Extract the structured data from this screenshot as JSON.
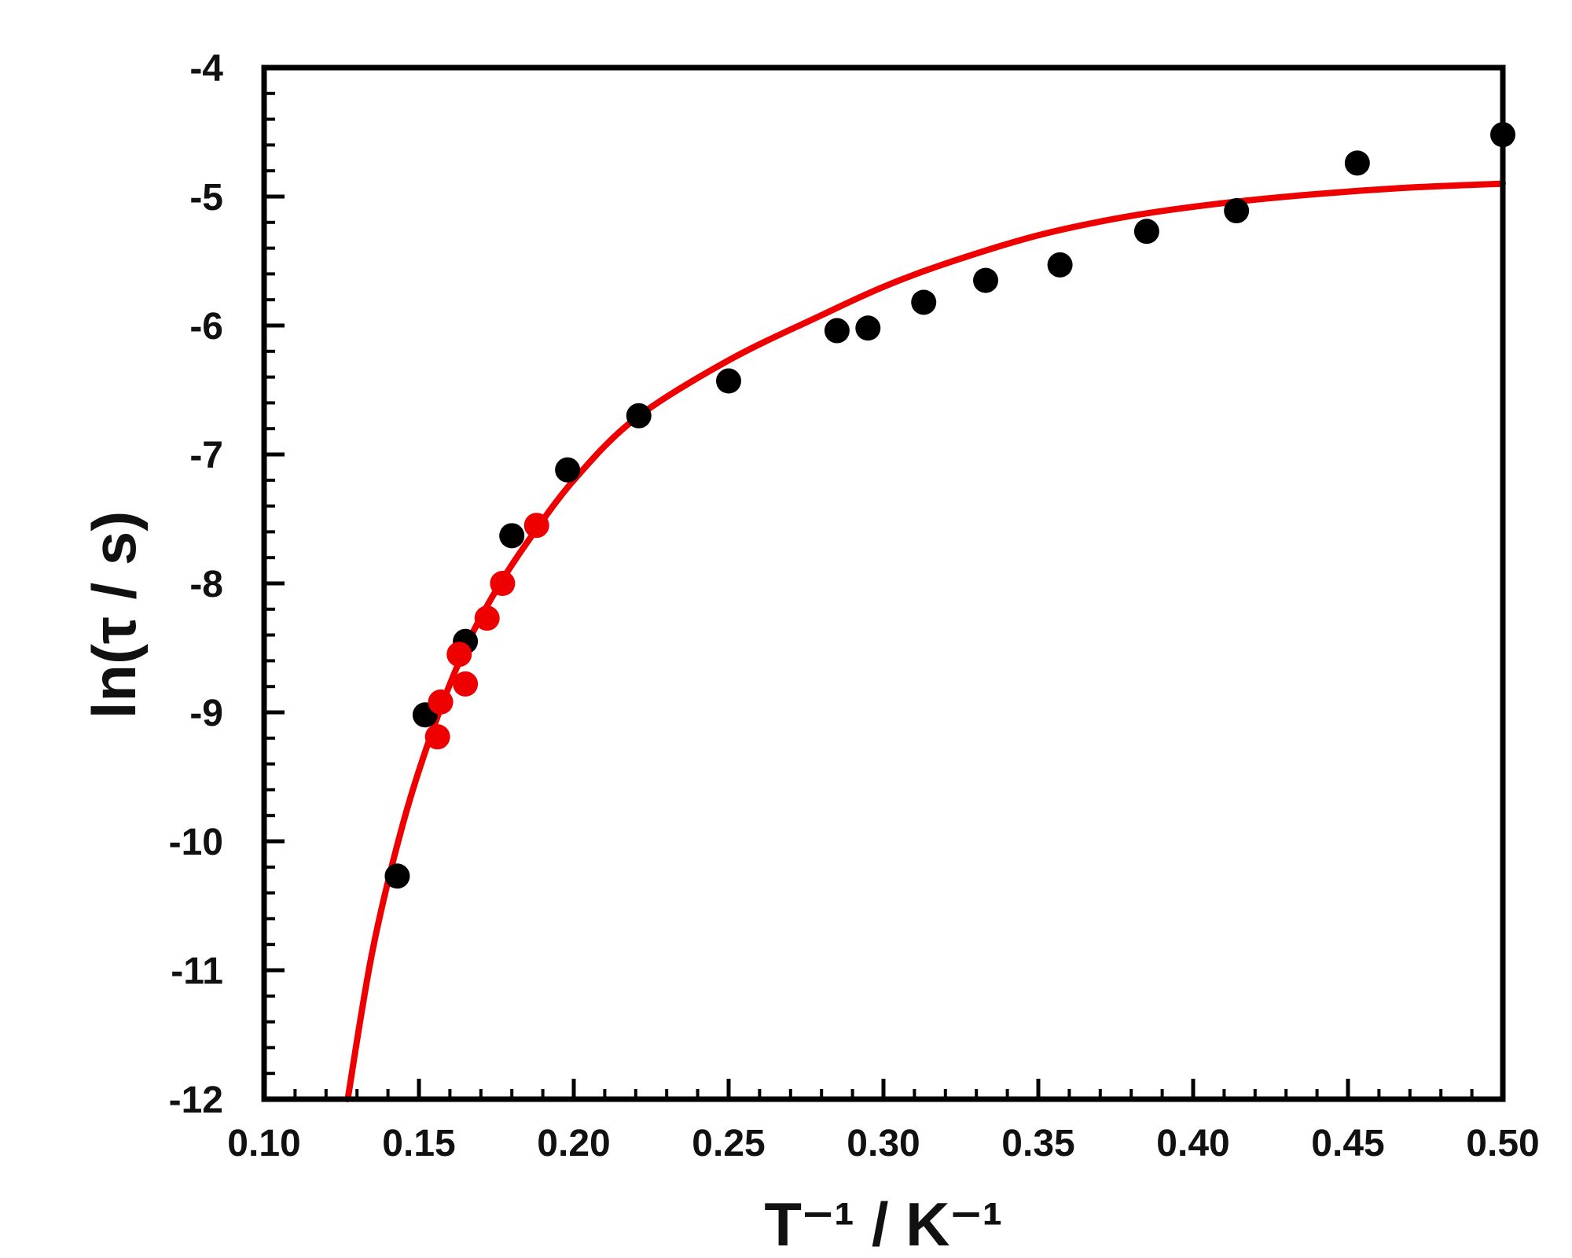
{
  "chart_data": {
    "type": "scatter",
    "title": "",
    "xlabel": "T⁻¹ / K⁻¹",
    "ylabel": "ln(τ / s)",
    "xlim": [
      0.1,
      0.5
    ],
    "ylim": [
      -12,
      -4
    ],
    "x_ticks": [
      "0.10",
      "0.15",
      "0.20",
      "0.25",
      "0.30",
      "0.35",
      "0.40",
      "0.45",
      "0.50"
    ],
    "y_ticks": [
      "-4",
      "-5",
      "-6",
      "-7",
      "-8",
      "-9",
      "-10",
      "-11",
      "-12"
    ],
    "grid": false,
    "series": [
      {
        "color": "#000000",
        "marker": "circle",
        "x": [
          0.143,
          0.152,
          0.165,
          0.18,
          0.198,
          0.221,
          0.25,
          0.285,
          0.295,
          0.313,
          0.333,
          0.357,
          0.385,
          0.414,
          0.453,
          0.5
        ],
        "y": [
          -10.27,
          -9.02,
          -8.45,
          -7.63,
          -7.12,
          -6.7,
          -6.43,
          -6.04,
          -6.02,
          -5.82,
          -5.65,
          -5.53,
          -5.27,
          -5.11,
          -4.74,
          -4.52
        ]
      },
      {
        "color": "#ee0000",
        "marker": "circle",
        "x": [
          0.156,
          0.157,
          0.163,
          0.165,
          0.172,
          0.177,
          0.188
        ],
        "y": [
          -9.19,
          -8.92,
          -8.55,
          -8.78,
          -8.27,
          -8.0,
          -7.55
        ]
      },
      {
        "color": "#ee0000",
        "marker": "line",
        "x": [
          0.127,
          0.135,
          0.145,
          0.155,
          0.165,
          0.175,
          0.185,
          0.2,
          0.22,
          0.25,
          0.28,
          0.3,
          0.32,
          0.35,
          0.38,
          0.41,
          0.44,
          0.47,
          0.5
        ],
        "y": [
          -12.0,
          -10.85,
          -9.85,
          -9.1,
          -8.5,
          -8.05,
          -7.68,
          -7.2,
          -6.72,
          -6.27,
          -5.92,
          -5.7,
          -5.52,
          -5.3,
          -5.15,
          -5.05,
          -4.98,
          -4.93,
          -4.9
        ]
      }
    ]
  }
}
